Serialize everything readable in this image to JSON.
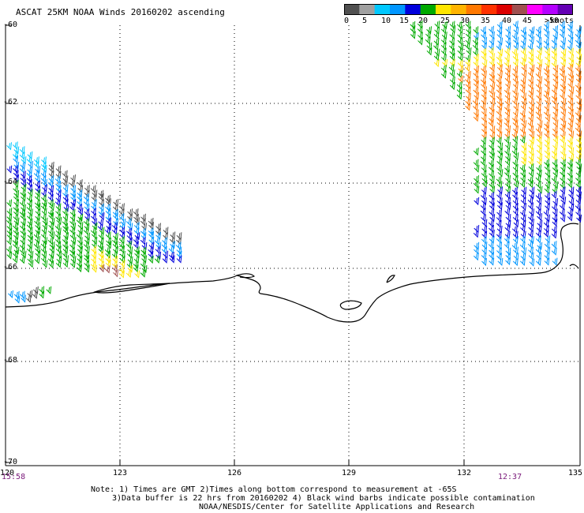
{
  "header": {
    "title": "ASCAT 25KM NOAA Winds 20160202 ascending"
  },
  "legend": {
    "unit_label": "knots",
    "tick_labels": [
      "0",
      "5",
      "10",
      "15",
      "20",
      "25",
      "30",
      "35",
      "40",
      "45",
      ">50"
    ],
    "colors": [
      "#505050",
      "#a0a0a0",
      "#00c8ff",
      "#0096ff",
      "#0000dc",
      "#00aa00",
      "#ffe600",
      "#ffb400",
      "#ff7800",
      "#ff3200",
      "#dc0000",
      "#a05050",
      "#ff00ff",
      "#b400ff",
      "#6400b4"
    ]
  },
  "axes": {
    "lat_labels": [
      "-60",
      "-62",
      "-64",
      "-66",
      "-68",
      "-70"
    ],
    "lon_labels": [
      "120",
      "123",
      "126",
      "129",
      "132",
      "135"
    ]
  },
  "times": {
    "left": "15:58",
    "right": "12:37"
  },
  "notes": {
    "line1": "Note: 1) Times are GMT 2)Times along bottom correspond to measurement at -65S",
    "line2": "3)Data buffer is 22 hrs from 20160202 4) Black wind barbs indicate possible contamination",
    "line3": "NOAA/NESDIS/Center for Satellite Applications and Research"
  }
}
